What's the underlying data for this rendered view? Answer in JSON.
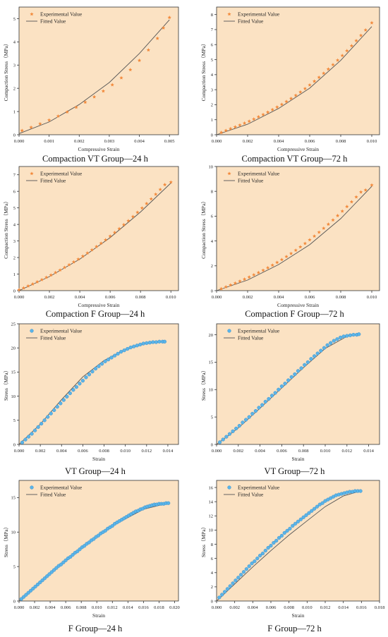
{
  "style": {
    "plot_bg": "#fbe2c3",
    "axis_color": "#333333",
    "marker_star": "#f28a3c",
    "marker_circle": "#5ab4e8",
    "fit_line": "#555555"
  },
  "chart_data": [
    {
      "type": "scatter",
      "caption": "Compaction VT Group—24 h",
      "xlabel": "Compressive Strain",
      "ylabel": "Compaction Stress（MPa）",
      "xlim": [
        0,
        0.0053
      ],
      "ylim": [
        0,
        5.5
      ],
      "xticks": [
        "0.000",
        "0.001",
        "0.002",
        "0.003",
        "0.004",
        "0.005"
      ],
      "yticks": [
        "0",
        "1",
        "2",
        "3",
        "4",
        "5"
      ],
      "legend": [
        "Experimental Value",
        "Fitted Value"
      ],
      "marker": "star",
      "experimental": {
        "x": [
          0.0001,
          0.0004,
          0.0007,
          0.001,
          0.0013,
          0.0016,
          0.0019,
          0.0022,
          0.0025,
          0.0028,
          0.0031,
          0.0034,
          0.0037,
          0.004,
          0.0043,
          0.0046,
          0.0048,
          0.005
        ],
        "y": [
          0.18,
          0.32,
          0.47,
          0.63,
          0.8,
          0.98,
          1.18,
          1.4,
          1.63,
          1.88,
          2.15,
          2.45,
          2.8,
          3.2,
          3.65,
          4.15,
          4.6,
          5.05
        ]
      },
      "fitted": {
        "x": [
          0.0,
          0.001,
          0.002,
          0.003,
          0.004,
          0.005
        ],
        "y": [
          0.05,
          0.55,
          1.3,
          2.25,
          3.5,
          4.95
        ]
      }
    },
    {
      "type": "scatter",
      "caption": "Compaction VT Group—72 h",
      "xlabel": "Compressive Strain",
      "ylabel": "Compaction Stress（MPa）",
      "xlim": [
        0,
        0.0105
      ],
      "ylim": [
        0,
        8.5
      ],
      "xticks": [
        "0.000",
        "0.002",
        "0.004",
        "0.006",
        "0.008",
        "0.010"
      ],
      "yticks": [
        "0",
        "1",
        "2",
        "3",
        "4",
        "5",
        "6",
        "7",
        "8"
      ],
      "legend": [
        "Experimental Value",
        "Fitted Value"
      ],
      "marker": "star",
      "experimental": {
        "x": [
          0.0003,
          0.0006,
          0.0009,
          0.0012,
          0.0015,
          0.0018,
          0.0021,
          0.0024,
          0.0027,
          0.003,
          0.0033,
          0.0036,
          0.0039,
          0.0042,
          0.0045,
          0.0048,
          0.0051,
          0.0054,
          0.0057,
          0.006,
          0.0063,
          0.0066,
          0.0069,
          0.0072,
          0.0075,
          0.0078,
          0.0081,
          0.0084,
          0.0087,
          0.009,
          0.0093,
          0.0096,
          0.01
        ],
        "y": [
          0.15,
          0.28,
          0.4,
          0.52,
          0.64,
          0.77,
          0.9,
          1.04,
          1.19,
          1.34,
          1.5,
          1.67,
          1.84,
          2.02,
          2.21,
          2.41,
          2.62,
          2.84,
          3.07,
          3.31,
          3.56,
          3.82,
          4.09,
          4.37,
          4.66,
          4.96,
          5.27,
          5.59,
          5.92,
          6.26,
          6.61,
          6.97,
          7.45
        ]
      },
      "fitted": {
        "x": [
          0.0,
          0.002,
          0.004,
          0.006,
          0.008,
          0.01
        ],
        "y": [
          0.0,
          0.7,
          1.75,
          3.1,
          4.95,
          7.2
        ]
      }
    },
    {
      "type": "scatter",
      "caption": "Compaction F Group—24 h",
      "xlabel": "Compressive Strain",
      "ylabel": "Compaction Stress（MPa）",
      "xlim": [
        0,
        0.0105
      ],
      "ylim": [
        0,
        7.5
      ],
      "xticks": [
        "0.000",
        "0.002",
        "0.004",
        "0.006",
        "0.008",
        "0.010"
      ],
      "yticks": [
        "0",
        "1",
        "2",
        "3",
        "4",
        "5",
        "6",
        "7"
      ],
      "legend": [
        "Experimental Value",
        "Fitted Value"
      ],
      "marker": "star",
      "experimental": {
        "x": [
          0.0,
          0.0003,
          0.0006,
          0.0009,
          0.0012,
          0.0015,
          0.0018,
          0.0021,
          0.0024,
          0.0027,
          0.003,
          0.0033,
          0.0036,
          0.0039,
          0.0042,
          0.0045,
          0.0048,
          0.0051,
          0.0054,
          0.0057,
          0.006,
          0.0063,
          0.0066,
          0.0069,
          0.0072,
          0.0075,
          0.0078,
          0.0081,
          0.0084,
          0.0087,
          0.009,
          0.0093,
          0.0096,
          0.01
        ],
        "y": [
          0.05,
          0.16,
          0.28,
          0.4,
          0.53,
          0.66,
          0.8,
          0.94,
          1.09,
          1.24,
          1.4,
          1.56,
          1.73,
          1.9,
          2.08,
          2.27,
          2.46,
          2.66,
          2.86,
          3.07,
          3.29,
          3.51,
          3.74,
          3.98,
          4.22,
          4.47,
          4.73,
          4.99,
          5.26,
          5.54,
          5.82,
          6.11,
          6.4,
          6.55
        ]
      },
      "fitted": {
        "x": [
          0.0,
          0.002,
          0.004,
          0.006,
          0.008,
          0.01
        ],
        "y": [
          0.0,
          0.85,
          1.9,
          3.2,
          4.75,
          6.5
        ]
      }
    },
    {
      "type": "scatter",
      "caption": "Compaction F Group—72 h",
      "xlabel": "Compressive Strain",
      "ylabel": "Compaction Stress（MPa）",
      "xlim": [
        0,
        0.0105
      ],
      "ylim": [
        0,
        10
      ],
      "xticks": [
        "0.000",
        "0.002",
        "0.004",
        "0.006",
        "0.008",
        "0.010"
      ],
      "yticks": [
        "0",
        "2",
        "4",
        "6",
        "8",
        "10"
      ],
      "legend": [
        "Experimental Value",
        "Fitted Value"
      ],
      "marker": "star",
      "experimental": {
        "x": [
          0.0003,
          0.0006,
          0.0009,
          0.0012,
          0.0015,
          0.0018,
          0.0021,
          0.0024,
          0.0027,
          0.003,
          0.0033,
          0.0036,
          0.0039,
          0.0042,
          0.0045,
          0.0048,
          0.0051,
          0.0054,
          0.0057,
          0.006,
          0.0063,
          0.0066,
          0.0069,
          0.0072,
          0.0075,
          0.0078,
          0.0081,
          0.0084,
          0.0087,
          0.009,
          0.0093,
          0.0096,
          0.01
        ],
        "y": [
          0.15,
          0.3,
          0.45,
          0.6,
          0.76,
          0.92,
          1.09,
          1.27,
          1.45,
          1.64,
          1.84,
          2.05,
          2.27,
          2.5,
          2.74,
          2.99,
          3.25,
          3.52,
          3.8,
          4.09,
          4.39,
          4.7,
          5.02,
          5.35,
          5.69,
          6.04,
          6.4,
          6.77,
          7.15,
          7.54,
          7.94,
          8.1,
          8.5
        ]
      },
      "fitted": {
        "x": [
          0.0,
          0.002,
          0.004,
          0.006,
          0.008,
          0.01
        ],
        "y": [
          0.0,
          0.85,
          2.1,
          3.7,
          5.8,
          8.4
        ]
      }
    },
    {
      "type": "scatter",
      "caption": "VT Group—24 h",
      "xlabel": "Strain",
      "ylabel": "Stress（MPa）",
      "xlim": [
        0,
        0.015
      ],
      "ylim": [
        0,
        25
      ],
      "xticks": [
        "0.000",
        "0.002",
        "0.004",
        "0.006",
        "0.008",
        "0.010",
        "0.012",
        "0.014"
      ],
      "yticks": [
        "0",
        "5",
        "10",
        "15",
        "20",
        "25"
      ],
      "legend": [
        "Experimental Value",
        "Fitted Value"
      ],
      "marker": "circle",
      "experimental": {
        "x": [
          0.0003,
          0.0006,
          0.0009,
          0.0012,
          0.0015,
          0.0018,
          0.0021,
          0.0024,
          0.0027,
          0.003,
          0.0033,
          0.0036,
          0.0039,
          0.0042,
          0.0045,
          0.0048,
          0.0051,
          0.0054,
          0.0057,
          0.006,
          0.0063,
          0.0066,
          0.0069,
          0.0072,
          0.0075,
          0.0078,
          0.0081,
          0.0084,
          0.0087,
          0.009,
          0.0093,
          0.0096,
          0.0099,
          0.0102,
          0.0105,
          0.0108,
          0.0111,
          0.0114,
          0.0117,
          0.012,
          0.0123,
          0.0126,
          0.0129,
          0.0132,
          0.0135,
          0.0137
        ],
        "y": [
          0.4,
          1.0,
          1.6,
          2.2,
          2.9,
          3.6,
          4.3,
          5.0,
          5.7,
          6.4,
          7.1,
          7.8,
          8.5,
          9.2,
          9.9,
          10.6,
          11.3,
          11.9,
          12.6,
          13.2,
          13.9,
          14.5,
          15.1,
          15.7,
          16.2,
          16.7,
          17.2,
          17.6,
          18.0,
          18.4,
          18.8,
          19.2,
          19.5,
          19.8,
          20.1,
          20.3,
          20.5,
          20.7,
          20.9,
          21.0,
          21.1,
          21.2,
          21.2,
          21.3,
          21.3,
          21.3
        ]
      },
      "fitted": {
        "x": [
          0.0,
          0.002,
          0.004,
          0.006,
          0.008,
          0.01,
          0.012,
          0.0137
        ],
        "y": [
          0.0,
          4.2,
          9.3,
          14.0,
          17.4,
          19.7,
          20.9,
          21.3
        ]
      }
    },
    {
      "type": "scatter",
      "caption": "VT Group—72 h",
      "xlabel": "Strain",
      "ylabel": "Stress（MPa）",
      "xlim": [
        0,
        0.015
      ],
      "ylim": [
        0,
        22
      ],
      "xticks": [
        "0.000",
        "0.002",
        "0.004",
        "0.006",
        "0.008",
        "0.010",
        "0.012",
        "0.014"
      ],
      "yticks": [
        "0",
        "5",
        "10",
        "15",
        "20"
      ],
      "legend": [
        "Experimental Value",
        "Fitted Value"
      ],
      "marker": "circle",
      "experimental": {
        "x": [
          0.0003,
          0.0006,
          0.0009,
          0.0012,
          0.0015,
          0.0018,
          0.0021,
          0.0024,
          0.0027,
          0.003,
          0.0033,
          0.0036,
          0.0039,
          0.0042,
          0.0045,
          0.0048,
          0.0051,
          0.0054,
          0.0057,
          0.006,
          0.0063,
          0.0066,
          0.0069,
          0.0072,
          0.0075,
          0.0078,
          0.0081,
          0.0084,
          0.0087,
          0.009,
          0.0093,
          0.0096,
          0.0099,
          0.0102,
          0.0105,
          0.0108,
          0.0111,
          0.0114,
          0.0117,
          0.012,
          0.0123,
          0.0126,
          0.0129,
          0.0131
        ],
        "y": [
          0.4,
          0.9,
          1.4,
          1.9,
          2.4,
          2.9,
          3.4,
          4.0,
          4.5,
          5.0,
          5.6,
          6.1,
          6.7,
          7.2,
          7.8,
          8.3,
          8.9,
          9.4,
          10.0,
          10.6,
          11.1,
          11.7,
          12.3,
          12.8,
          13.4,
          13.9,
          14.5,
          15.0,
          15.6,
          16.1,
          16.6,
          17.1,
          17.6,
          18.1,
          18.5,
          18.9,
          19.2,
          19.5,
          19.7,
          19.8,
          19.9,
          20.0,
          20.0,
          20.1
        ]
      },
      "fitted": {
        "x": [
          0.0,
          0.002,
          0.004,
          0.006,
          0.008,
          0.01,
          0.012,
          0.0131
        ],
        "y": [
          0.0,
          3.0,
          6.6,
          10.3,
          14.0,
          17.5,
          19.7,
          20.1
        ]
      }
    },
    {
      "type": "scatter",
      "caption": "F Group—24 h",
      "xlabel": "Strain",
      "ylabel": "Stress（MPa）",
      "xlim": [
        0,
        0.0205
      ],
      "ylim": [
        0,
        17.5
      ],
      "xticks": [
        "0.000",
        "0.002",
        "0.004",
        "0.006",
        "0.008",
        "0.010",
        "0.012",
        "0.014",
        "0.016",
        "0.018",
        "0.020"
      ],
      "yticks": [
        "0",
        "5",
        "10",
        "15"
      ],
      "legend": [
        "Experimental Value",
        "Fitted Value"
      ],
      "marker": "circle",
      "experimental": {
        "x": [
          0.0003,
          0.0006,
          0.0009,
          0.0012,
          0.0015,
          0.0018,
          0.0021,
          0.0024,
          0.0027,
          0.003,
          0.0033,
          0.0036,
          0.0039,
          0.0042,
          0.0045,
          0.0048,
          0.0051,
          0.0054,
          0.0057,
          0.006,
          0.0063,
          0.0066,
          0.0069,
          0.0072,
          0.0075,
          0.0078,
          0.0081,
          0.0084,
          0.0087,
          0.009,
          0.0093,
          0.0096,
          0.0099,
          0.0102,
          0.0105,
          0.0108,
          0.0111,
          0.0114,
          0.0117,
          0.012,
          0.0123,
          0.0126,
          0.0129,
          0.0132,
          0.0135,
          0.0138,
          0.0141,
          0.0144,
          0.0147,
          0.015,
          0.0153,
          0.0156,
          0.0159,
          0.0162,
          0.0165,
          0.0168,
          0.0171,
          0.0174,
          0.0177,
          0.018,
          0.0183,
          0.0186,
          0.0189,
          0.0192
        ],
        "y": [
          0.3,
          0.6,
          0.9,
          1.2,
          1.5,
          1.8,
          2.1,
          2.4,
          2.7,
          3.0,
          3.3,
          3.6,
          3.9,
          4.2,
          4.5,
          4.8,
          5.1,
          5.3,
          5.6,
          5.9,
          6.2,
          6.4,
          6.7,
          7.0,
          7.2,
          7.5,
          7.8,
          8.0,
          8.3,
          8.5,
          8.8,
          9.0,
          9.3,
          9.5,
          9.8,
          10.0,
          10.2,
          10.5,
          10.7,
          10.9,
          11.2,
          11.4,
          11.6,
          11.8,
          12.0,
          12.2,
          12.4,
          12.6,
          12.8,
          13.0,
          13.1,
          13.3,
          13.4,
          13.6,
          13.7,
          13.8,
          13.9,
          14.0,
          14.0,
          14.1,
          14.1,
          14.1,
          14.2,
          14.2
        ]
      },
      "fitted": {
        "x": [
          0.0,
          0.004,
          0.008,
          0.012,
          0.016,
          0.0192
        ],
        "y": [
          0.0,
          4.0,
          7.6,
          10.9,
          13.3,
          14.2
        ]
      }
    },
    {
      "type": "scatter",
      "caption": "F Group—72 h",
      "xlabel": "Strain",
      "ylabel": "Stress（MPa）",
      "xlim": [
        0,
        0.018
      ],
      "ylim": [
        0,
        17
      ],
      "xticks": [
        "0.000",
        "0.002",
        "0.004",
        "0.006",
        "0.008",
        "0.010",
        "0.012",
        "0.014",
        "0.016",
        "0.018"
      ],
      "yticks": [
        "0",
        "2",
        "4",
        "6",
        "8",
        "10",
        "12",
        "14",
        "16"
      ],
      "legend": [
        "Experimental Value",
        "Fitted Value"
      ],
      "marker": "circle",
      "experimental": {
        "x": [
          0.0003,
          0.0006,
          0.0009,
          0.0012,
          0.0015,
          0.0018,
          0.0021,
          0.0024,
          0.0027,
          0.003,
          0.0033,
          0.0036,
          0.0039,
          0.0042,
          0.0045,
          0.0048,
          0.0051,
          0.0054,
          0.0057,
          0.006,
          0.0063,
          0.0066,
          0.0069,
          0.0072,
          0.0075,
          0.0078,
          0.0081,
          0.0084,
          0.0087,
          0.009,
          0.0093,
          0.0096,
          0.0099,
          0.0102,
          0.0105,
          0.0108,
          0.0111,
          0.0114,
          0.0117,
          0.012,
          0.0123,
          0.0126,
          0.0129,
          0.0132,
          0.0135,
          0.0138,
          0.0141,
          0.0144,
          0.0147,
          0.015,
          0.0153,
          0.0156,
          0.0159
        ],
        "y": [
          0.5,
          0.9,
          1.3,
          1.7,
          2.1,
          2.5,
          2.9,
          3.3,
          3.7,
          4.1,
          4.5,
          4.9,
          5.3,
          5.6,
          6.0,
          6.4,
          6.7,
          7.1,
          7.5,
          7.8,
          8.2,
          8.5,
          8.9,
          9.2,
          9.6,
          9.9,
          10.2,
          10.6,
          10.9,
          11.2,
          11.5,
          11.8,
          12.1,
          12.4,
          12.7,
          13.0,
          13.3,
          13.6,
          13.8,
          14.1,
          14.3,
          14.5,
          14.7,
          14.9,
          15.0,
          15.1,
          15.2,
          15.3,
          15.4,
          15.4,
          15.5,
          15.5,
          15.5
        ]
      },
      "fitted": {
        "x": [
          0.0,
          0.002,
          0.004,
          0.006,
          0.008,
          0.01,
          0.012,
          0.014,
          0.0159
        ],
        "y": [
          0.0,
          2.4,
          4.8,
          7.1,
          9.3,
          11.3,
          13.3,
          14.8,
          15.5
        ]
      }
    }
  ]
}
